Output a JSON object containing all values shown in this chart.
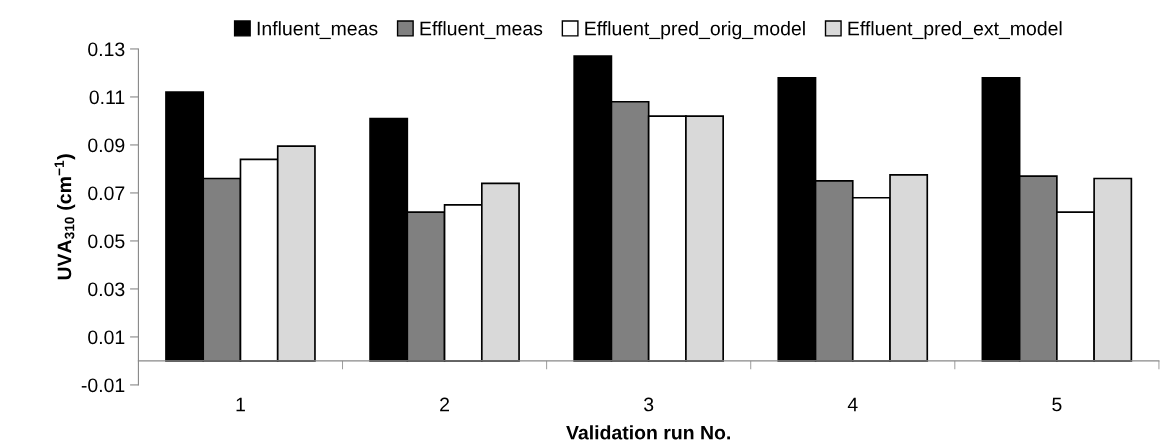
{
  "chart_data": {
    "type": "bar",
    "xlabel": "Validation run No.",
    "ylabel": "UVA$_{310}$ (cm$^{−1}$)",
    "categories": [
      "1",
      "2",
      "3",
      "4",
      "5"
    ],
    "series": [
      {
        "name": "Influent_meas",
        "color": "#000000",
        "values": [
          0.112,
          0.101,
          0.127,
          0.118,
          0.118
        ]
      },
      {
        "name": "Effluent_meas",
        "color": "#808080",
        "values": [
          0.076,
          0.062,
          0.108,
          0.075,
          0.077
        ]
      },
      {
        "name": "Effluent_pred_orig_model",
        "color": "#ffffff",
        "values": [
          0.084,
          0.065,
          0.102,
          0.068,
          0.062
        ]
      },
      {
        "name": "Effluent_pred_ext_model",
        "color": "#d9d9d9",
        "values": [
          0.0895,
          0.074,
          0.102,
          0.0775,
          0.076
        ]
      }
    ],
    "ylim": [
      -0.01,
      0.13
    ],
    "yticks": [
      -0.01,
      0.01,
      0.03,
      0.05,
      0.07,
      0.09,
      0.11,
      0.13
    ],
    "grid": false,
    "legend": "top"
  }
}
